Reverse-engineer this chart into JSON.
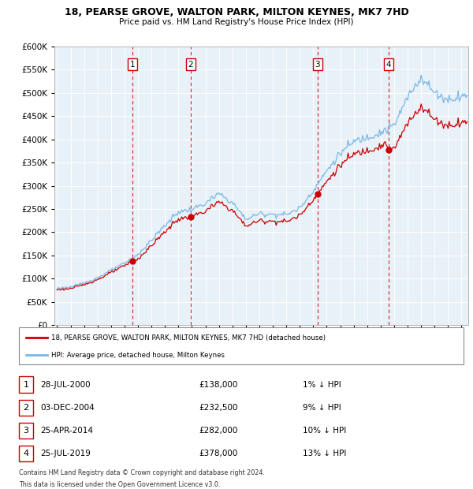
{
  "title1": "18, PEARSE GROVE, WALTON PARK, MILTON KEYNES, MK7 7HD",
  "title2": "Price paid vs. HM Land Registry's House Price Index (HPI)",
  "hpi_color": "#7ab8e8",
  "price_color": "#cc0000",
  "background_color": "#e8f0f8",
  "grid_color": "#ffffff",
  "ylim": [
    0,
    600000
  ],
  "yticks": [
    0,
    50000,
    100000,
    150000,
    200000,
    250000,
    300000,
    350000,
    400000,
    450000,
    500000,
    550000,
    600000
  ],
  "xlim_start": 1994.8,
  "xlim_end": 2025.5,
  "purchases": [
    {
      "num": 1,
      "date": "28-JUL-2000",
      "year": 2000.57,
      "price": 138000,
      "hpi_pct": "1% ↓ HPI"
    },
    {
      "num": 2,
      "date": "03-DEC-2004",
      "year": 2004.92,
      "price": 232500,
      "hpi_pct": "9% ↓ HPI"
    },
    {
      "num": 3,
      "date": "25-APR-2014",
      "year": 2014.32,
      "price": 282000,
      "hpi_pct": "10% ↓ HPI"
    },
    {
      "num": 4,
      "date": "25-JUL-2019",
      "year": 2019.57,
      "price": 378000,
      "hpi_pct": "13% ↓ HPI"
    }
  ],
  "legend_label1": "18, PEARSE GROVE, WALTON PARK, MILTON KEYNES, MK7 7HD (detached house)",
  "legend_label2": "HPI: Average price, detached house, Milton Keynes",
  "footer1": "Contains HM Land Registry data © Crown copyright and database right 2024.",
  "footer2": "This data is licensed under the Open Government Licence v3.0."
}
